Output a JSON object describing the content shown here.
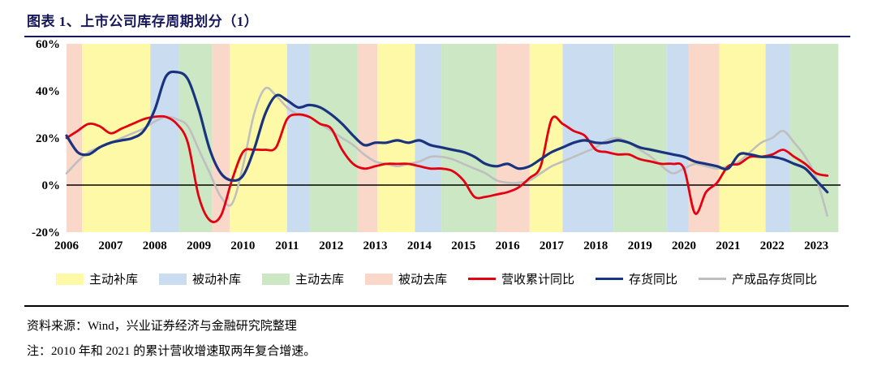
{
  "header": {
    "title": "图表 1、上市公司库存周期划分（1）"
  },
  "footer": {
    "source": "资料来源：Wind，兴业证券经济与金融研究院整理",
    "note": "注：2010 年和 2021 的累计营收增速取两年复合增速。"
  },
  "legend": {
    "items": [
      {
        "label": "主动补库",
        "swatch": "fill",
        "color": "#FEF9A7"
      },
      {
        "label": "被动补库",
        "swatch": "fill",
        "color": "#CADCF0"
      },
      {
        "label": "主动去库",
        "swatch": "fill",
        "color": "#CBE7C3"
      },
      {
        "label": "被动去库",
        "swatch": "fill",
        "color": "#F9D8C9"
      },
      {
        "label": "营收累计同比",
        "swatch": "line",
        "color": "#E50011"
      },
      {
        "label": "存货同比",
        "swatch": "line",
        "color": "#1A337F"
      },
      {
        "label": "产成品存货同比",
        "swatch": "line",
        "color": "#BFBFBF"
      }
    ]
  },
  "chart_data": {
    "type": "line",
    "title": "上市公司库存周期划分（1）",
    "x_axis": {
      "min": 2006,
      "max": 2023.55,
      "tick_years": [
        2006,
        2007,
        2008,
        2009,
        2010,
        2011,
        2012,
        2013,
        2014,
        2015,
        2016,
        2017,
        2018,
        2019,
        2020,
        2021,
        2022,
        2023
      ]
    },
    "y_axis": {
      "min": -20,
      "max": 60,
      "ticks": [
        {
          "value": 60,
          "label": "60%"
        },
        {
          "value": 40,
          "label": "40%"
        },
        {
          "value": 20,
          "label": "20%"
        },
        {
          "value": 0,
          "label": "0%"
        },
        {
          "value": -20,
          "label": "-20%"
        }
      ]
    },
    "x_start": 2006,
    "x_step": 0.25,
    "series": [
      {
        "id": "revenue-cumulative-yoy",
        "name": "营收累计同比",
        "color": "#E50011",
        "width": 2.8,
        "draw_order": 1,
        "values": [
          20,
          23,
          26,
          25,
          22,
          24,
          26,
          28,
          29,
          29,
          26,
          18,
          -5,
          -15,
          -13,
          2,
          14,
          15,
          15,
          16,
          28,
          30,
          29,
          26,
          24,
          15,
          9,
          7,
          8,
          9,
          9,
          9,
          8,
          7,
          7,
          6,
          2,
          -5,
          -5,
          -4,
          -3,
          -1,
          3,
          8,
          28,
          26,
          23,
          21,
          15,
          14,
          13,
          13,
          11,
          10,
          9,
          9,
          7,
          -12,
          -3,
          1,
          8,
          9,
          12,
          12,
          13,
          15,
          12,
          9,
          5,
          4
        ]
      },
      {
        "id": "inventory-yoy",
        "name": "存货同比",
        "color": "#1A337F",
        "width": 3.2,
        "draw_order": 2,
        "values": [
          21,
          14,
          13,
          16,
          18,
          19,
          20,
          23,
          32,
          46,
          48,
          45,
          32,
          15,
          5,
          2,
          4,
          15,
          30,
          38,
          36,
          33,
          34,
          33,
          30,
          26,
          21,
          17,
          18,
          18,
          19,
          18,
          19,
          17,
          16,
          15,
          14,
          12,
          9,
          8,
          9,
          7,
          8,
          11,
          14,
          16,
          18,
          19,
          18,
          18,
          19,
          18,
          16,
          15,
          14,
          13,
          12,
          10,
          9,
          8,
          7,
          13,
          13,
          12,
          12,
          11,
          9,
          7,
          2,
          -3
        ]
      },
      {
        "id": "finished-goods-inventory-yoy",
        "name": "产成品存货同比",
        "color": "#BFBFBF",
        "width": 2.6,
        "draw_order": 0,
        "values": [
          5,
          10,
          14,
          16,
          18,
          20,
          22,
          24,
          27,
          29,
          28,
          25,
          15,
          5,
          -5,
          -8,
          8,
          30,
          41,
          38,
          33,
          30,
          29,
          26,
          23,
          20,
          17,
          13,
          10,
          9,
          8,
          9,
          10,
          12,
          12,
          11,
          9,
          7,
          5,
          2,
          1,
          1,
          2,
          5,
          8,
          10,
          12,
          14,
          16,
          19,
          20,
          18,
          15,
          12,
          8,
          5,
          7,
          9,
          8,
          7,
          8,
          10,
          14,
          18,
          20,
          23,
          18,
          12,
          3,
          -13
        ]
      }
    ],
    "phase_colors": {
      "主动补库": "#FEF9A7",
      "被动补库": "#CADCF0",
      "主动去库": "#CBE7C3",
      "被动去库": "#F9D8C9"
    },
    "phase_bands": [
      {
        "phase": "被动去库",
        "start": 2006.0,
        "end": 2006.35
      },
      {
        "phase": "主动补库",
        "start": 2006.35,
        "end": 2007.9
      },
      {
        "phase": "被动补库",
        "start": 2007.9,
        "end": 2008.55
      },
      {
        "phase": "主动去库",
        "start": 2008.55,
        "end": 2009.3
      },
      {
        "phase": "被动去库",
        "start": 2009.3,
        "end": 2009.7
      },
      {
        "phase": "主动补库",
        "start": 2009.7,
        "end": 2011.0
      },
      {
        "phase": "被动补库",
        "start": 2011.0,
        "end": 2011.5
      },
      {
        "phase": "主动去库",
        "start": 2011.5,
        "end": 2012.6
      },
      {
        "phase": "被动去库",
        "start": 2012.6,
        "end": 2013.05
      },
      {
        "phase": "主动补库",
        "start": 2013.05,
        "end": 2013.9
      },
      {
        "phase": "被动补库",
        "start": 2013.9,
        "end": 2014.5
      },
      {
        "phase": "主动去库",
        "start": 2014.5,
        "end": 2015.75
      },
      {
        "phase": "被动去库",
        "start": 2015.75,
        "end": 2016.5
      },
      {
        "phase": "主动补库",
        "start": 2016.5,
        "end": 2017.25
      },
      {
        "phase": "被动补库",
        "start": 2017.25,
        "end": 2018.4
      },
      {
        "phase": "主动去库",
        "start": 2018.4,
        "end": 2019.6
      },
      {
        "phase": "被动补库",
        "start": 2019.6,
        "end": 2020.1
      },
      {
        "phase": "被动去库",
        "start": 2020.1,
        "end": 2020.8
      },
      {
        "phase": "主动补库",
        "start": 2020.8,
        "end": 2021.85
      },
      {
        "phase": "被动补库",
        "start": 2021.85,
        "end": 2022.4
      },
      {
        "phase": "主动去库",
        "start": 2022.4,
        "end": 2023.5
      }
    ]
  }
}
